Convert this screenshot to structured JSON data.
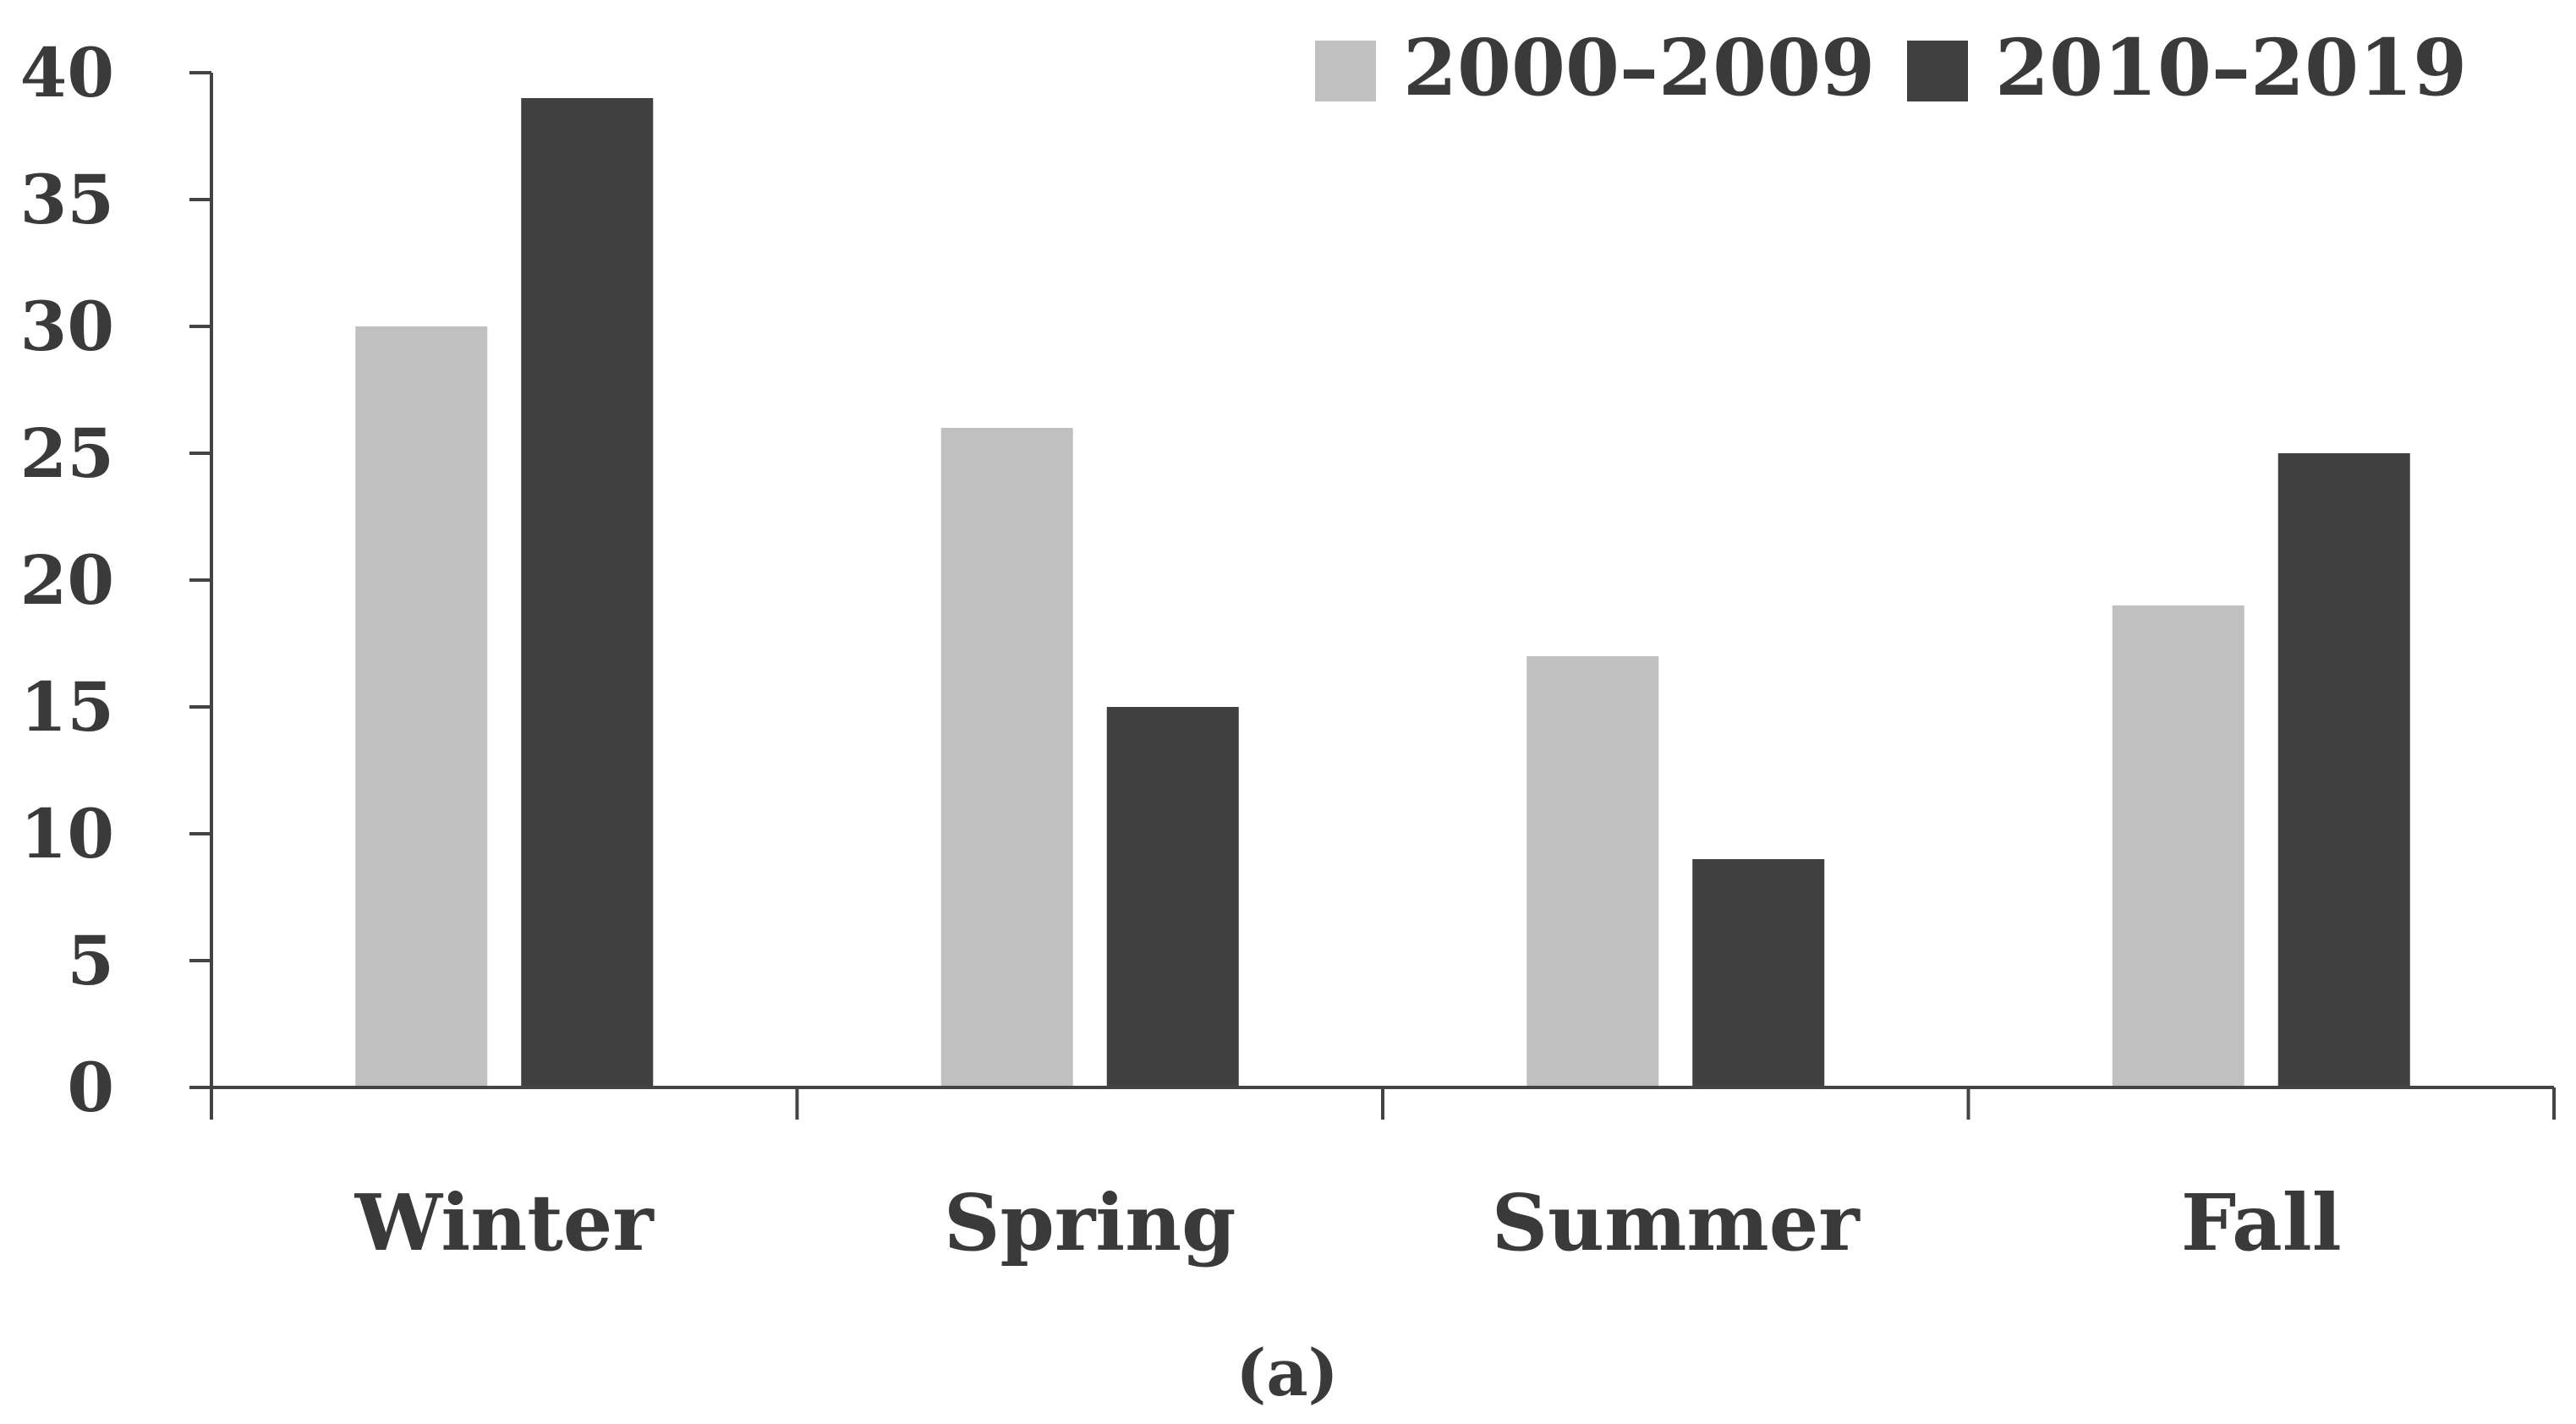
{
  "chart_data": {
    "type": "bar",
    "categories": [
      "Winter",
      "Spring",
      "Summer",
      "Fall"
    ],
    "series": [
      {
        "name": "2000–2009",
        "values": [
          30,
          26,
          17,
          19
        ],
        "color": "#c0c0c0"
      },
      {
        "name": "2010–2019",
        "values": [
          39,
          15,
          9,
          25
        ],
        "color": "#404040"
      }
    ],
    "ylim": [
      0,
      40
    ],
    "yticks": [
      0,
      5,
      10,
      15,
      20,
      25,
      30,
      35,
      40
    ],
    "xlabel": "",
    "ylabel": "",
    "title": "",
    "grid": false,
    "legend_position": "top-right",
    "panel_label": "(a)"
  }
}
